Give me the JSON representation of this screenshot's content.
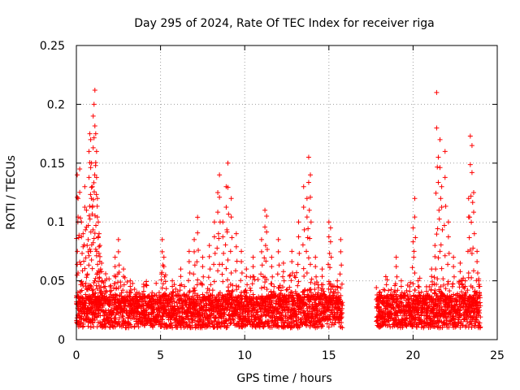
{
  "chart_data": {
    "type": "scatter",
    "title": "Day 295 of 2024, Rate Of TEC Index for receiver riga",
    "xlabel": "GPS time / hours",
    "ylabel": "ROTI / TECUs",
    "xlim": [
      0,
      25
    ],
    "ylim": [
      0,
      0.25
    ],
    "grid": true,
    "xticks": [
      0,
      5,
      10,
      15,
      20,
      25
    ],
    "xtick_labels": [
      "0",
      "5",
      "10",
      "15",
      "20",
      "25"
    ],
    "yticks": [
      0,
      0.05,
      0.1,
      0.15,
      0.2,
      0.25
    ],
    "ytick_labels": [
      "0",
      "0.05",
      "0.1",
      "0.15",
      "0.2",
      "0.25"
    ],
    "marker": "+",
    "color": "#ff0000",
    "data_gap_hours": [
      15.8,
      17.8
    ],
    "series": [
      {
        "name": "ROTI",
        "points": [
          [
            0.05,
            0.14
          ],
          [
            0.1,
            0.12
          ],
          [
            0.2,
            0.145
          ],
          [
            0.3,
            0.1
          ],
          [
            0.4,
            0.09
          ],
          [
            0.5,
            0.13
          ],
          [
            0.6,
            0.11
          ],
          [
            0.7,
            0.085
          ],
          [
            0.75,
            0.16
          ],
          [
            0.8,
            0.175
          ],
          [
            0.85,
            0.17
          ],
          [
            0.9,
            0.15
          ],
          [
            0.95,
            0.13
          ],
          [
            1.0,
            0.19
          ],
          [
            1.05,
            0.2
          ],
          [
            1.1,
            0.212
          ],
          [
            1.15,
            0.175
          ],
          [
            1.2,
            0.16
          ],
          [
            1.25,
            0.12
          ],
          [
            1.3,
            0.1
          ],
          [
            1.35,
            0.09
          ],
          [
            1.4,
            0.08
          ],
          [
            1.5,
            0.065
          ],
          [
            1.7,
            0.05
          ],
          [
            2.0,
            0.045
          ],
          [
            2.3,
            0.07
          ],
          [
            2.5,
            0.085
          ],
          [
            2.8,
            0.06
          ],
          [
            3.2,
            0.05
          ],
          [
            3.6,
            0.04
          ],
          [
            4.0,
            0.045
          ],
          [
            4.5,
            0.04
          ],
          [
            5.1,
            0.085
          ],
          [
            5.2,
            0.07
          ],
          [
            5.3,
            0.055
          ],
          [
            5.7,
            0.05
          ],
          [
            6.2,
            0.06
          ],
          [
            6.7,
            0.075
          ],
          [
            7.0,
            0.085
          ],
          [
            7.2,
            0.104
          ],
          [
            7.5,
            0.07
          ],
          [
            7.9,
            0.08
          ],
          [
            8.2,
            0.1
          ],
          [
            8.4,
            0.125
          ],
          [
            8.5,
            0.14
          ],
          [
            8.7,
            0.1
          ],
          [
            8.9,
            0.13
          ],
          [
            9.0,
            0.15
          ],
          [
            9.2,
            0.12
          ],
          [
            9.5,
            0.09
          ],
          [
            9.8,
            0.075
          ],
          [
            10.1,
            0.06
          ],
          [
            10.5,
            0.07
          ],
          [
            11.0,
            0.085
          ],
          [
            11.2,
            0.11
          ],
          [
            11.3,
            0.105
          ],
          [
            11.6,
            0.07
          ],
          [
            12.0,
            0.085
          ],
          [
            12.3,
            0.065
          ],
          [
            12.8,
            0.075
          ],
          [
            13.2,
            0.1
          ],
          [
            13.5,
            0.13
          ],
          [
            13.7,
            0.12
          ],
          [
            13.8,
            0.155
          ],
          [
            13.9,
            0.14
          ],
          [
            14.2,
            0.07
          ],
          [
            14.6,
            0.06
          ],
          [
            15.0,
            0.1
          ],
          [
            15.1,
            0.095
          ],
          [
            15.5,
            0.05
          ],
          [
            15.7,
            0.085
          ],
          [
            18.0,
            0.04
          ],
          [
            18.5,
            0.035
          ],
          [
            19.0,
            0.07
          ],
          [
            19.3,
            0.05
          ],
          [
            19.8,
            0.045
          ],
          [
            20.0,
            0.095
          ],
          [
            20.1,
            0.12
          ],
          [
            20.3,
            0.05
          ],
          [
            20.8,
            0.045
          ],
          [
            21.1,
            0.06
          ],
          [
            21.3,
            0.08
          ],
          [
            21.4,
            0.21
          ],
          [
            21.5,
            0.155
          ],
          [
            21.6,
            0.17
          ],
          [
            21.7,
            0.13
          ],
          [
            21.9,
            0.16
          ],
          [
            22.1,
            0.1
          ],
          [
            22.4,
            0.07
          ],
          [
            22.8,
            0.065
          ],
          [
            23.1,
            0.05
          ],
          [
            23.3,
            0.12
          ],
          [
            23.4,
            0.173
          ],
          [
            23.5,
            0.165
          ],
          [
            23.6,
            0.125
          ],
          [
            23.8,
            0.075
          ],
          [
            23.9,
            0.05
          ]
        ]
      }
    ]
  }
}
